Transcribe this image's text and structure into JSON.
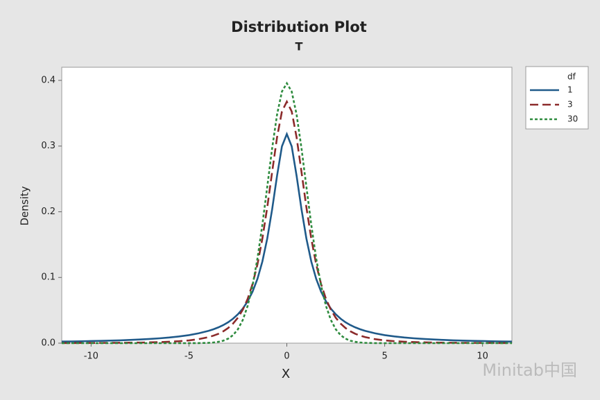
{
  "chart_data": {
    "type": "line",
    "title": "Distribution Plot",
    "subtitle": "T",
    "x_label": "X",
    "y_label": "Density",
    "legend_title": "df",
    "legend": "right",
    "grid": false,
    "watermark": "Minitab中国",
    "x": [
      -11.5,
      -11,
      -10.5,
      -10,
      -9.5,
      -9,
      -8.5,
      -8,
      -7.5,
      -7,
      -6.5,
      -6,
      -5.5,
      -5,
      -4.5,
      -4,
      -3.75,
      -3.5,
      -3.25,
      -3,
      -2.75,
      -2.5,
      -2.25,
      -2,
      -1.75,
      -1.5,
      -1.25,
      -1,
      -0.75,
      -0.5,
      -0.25,
      0,
      0.25,
      0.5,
      0.75,
      1,
      1.25,
      1.5,
      1.75,
      2,
      2.25,
      2.5,
      2.75,
      3,
      3.25,
      3.5,
      3.75,
      4,
      4.5,
      5,
      5.5,
      6,
      6.5,
      7,
      7.5,
      8,
      8.5,
      9,
      9.5,
      10,
      10.5,
      11,
      11.5
    ],
    "series": [
      {
        "name": "1",
        "color": "#1f5a8a",
        "style": "solid",
        "values": [
          0.0024,
          0.0026,
          0.0029,
          0.0032,
          0.0035,
          0.0039,
          0.0043,
          0.0049,
          0.0056,
          0.0064,
          0.0074,
          0.0086,
          0.0102,
          0.0122,
          0.015,
          0.0187,
          0.0211,
          0.024,
          0.0275,
          0.0318,
          0.0372,
          0.0439,
          0.0525,
          0.0637,
          0.0784,
          0.0979,
          0.1242,
          0.1592,
          0.2037,
          0.2546,
          0.2996,
          0.3183,
          0.2996,
          0.2546,
          0.2037,
          0.1592,
          0.1242,
          0.0979,
          0.0784,
          0.0637,
          0.0525,
          0.0439,
          0.0372,
          0.0318,
          0.0275,
          0.024,
          0.0211,
          0.0187,
          0.015,
          0.0122,
          0.0102,
          0.0086,
          0.0074,
          0.0064,
          0.0056,
          0.0049,
          0.0043,
          0.0039,
          0.0035,
          0.0032,
          0.0029,
          0.0026,
          0.0024
        ]
      },
      {
        "name": "3",
        "color": "#8b2a2a",
        "style": "dashed",
        "values": [
          0.0002,
          0.0002,
          0.0003,
          0.0003,
          0.0004,
          0.0005,
          0.0006,
          0.0007,
          0.0009,
          0.0012,
          0.0016,
          0.0022,
          0.003,
          0.0042,
          0.0061,
          0.0092,
          0.0114,
          0.0142,
          0.018,
          0.023,
          0.0297,
          0.0387,
          0.0509,
          0.0675,
          0.09,
          0.12,
          0.1589,
          0.2067,
          0.2606,
          0.3132,
          0.3527,
          0.3676,
          0.3527,
          0.3132,
          0.2606,
          0.2067,
          0.1589,
          0.12,
          0.09,
          0.0675,
          0.0509,
          0.0387,
          0.0297,
          0.023,
          0.018,
          0.0142,
          0.0114,
          0.0092,
          0.0061,
          0.0042,
          0.003,
          0.0022,
          0.0016,
          0.0012,
          0.0009,
          0.0007,
          0.0006,
          0.0005,
          0.0004,
          0.0003,
          0.0003,
          0.0002,
          0.0002
        ]
      },
      {
        "name": "30",
        "color": "#2e8b3e",
        "style": "dotted",
        "values": [
          0,
          0,
          0,
          0,
          0,
          0,
          0,
          0,
          0,
          0,
          0,
          0,
          0,
          0,
          0.0001,
          0.0005,
          0.001,
          0.002,
          0.0037,
          0.0068,
          0.0121,
          0.0211,
          0.0353,
          0.0568,
          0.0877,
          0.1289,
          0.1801,
          0.238,
          0.2966,
          0.3478,
          0.383,
          0.3956,
          0.383,
          0.3478,
          0.2966,
          0.238,
          0.1801,
          0.1289,
          0.0877,
          0.0568,
          0.0353,
          0.0211,
          0.0121,
          0.0068,
          0.0037,
          0.002,
          0.001,
          0.0005,
          0.0001,
          0,
          0,
          0,
          0,
          0,
          0,
          0,
          0,
          0,
          0,
          0,
          0,
          0,
          0
        ]
      }
    ],
    "xlim": [
      -11.5,
      11.5
    ],
    "xticks": [
      -10,
      -5,
      0,
      5,
      10
    ],
    "ylim": [
      0,
      0.42
    ],
    "yticks": [
      {
        "value": 0,
        "label": "0.0"
      },
      0.1,
      0.2,
      0.3,
      0.4
    ]
  }
}
